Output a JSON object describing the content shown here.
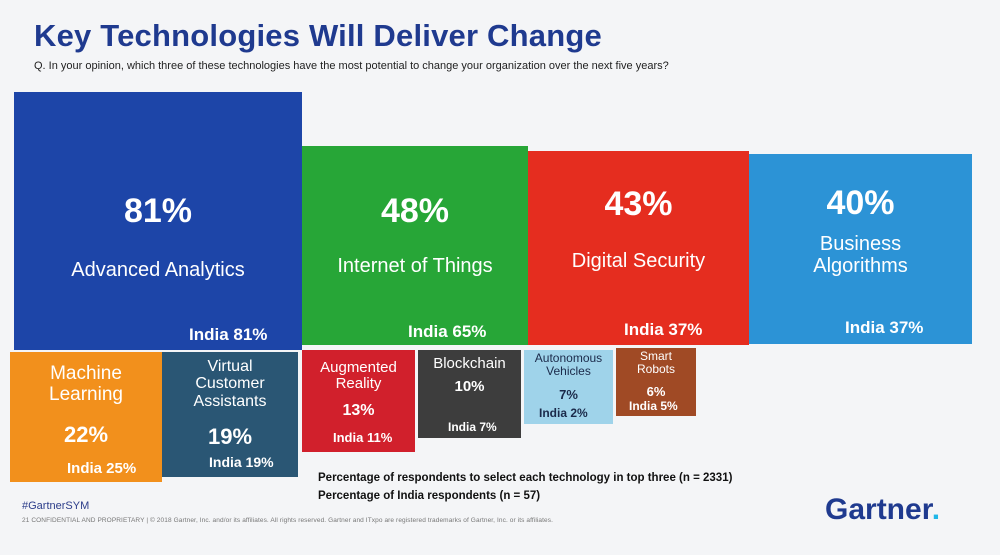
{
  "title": "Key Technologies Will Deliver Change",
  "question": "Q. In your opinion, which three of these technologies have the most potential to change your organization over the next five years?",
  "chart_data": {
    "type": "treemap",
    "series": [
      {
        "name": "Percentage of respondents to select each technology in top three (n = 2331)"
      },
      {
        "name": "Percentage of India respondents (n = 57)"
      }
    ],
    "items": [
      {
        "id": "advanced-analytics",
        "label": "Advanced Analytics",
        "value": 81,
        "value_label": "81%",
        "india": 81,
        "india_label": "India 81%",
        "color": "#1d45a8"
      },
      {
        "id": "internet-of-things",
        "label": "Internet of Things",
        "value": 48,
        "value_label": "48%",
        "india": 65,
        "india_label": "India 65%",
        "color": "#27a637"
      },
      {
        "id": "digital-security",
        "label": "Digital Security",
        "value": 43,
        "value_label": "43%",
        "india": 37,
        "india_label": "India 37%",
        "color": "#e52d1f"
      },
      {
        "id": "business-algorithms",
        "label": "Business Algorithms",
        "value": 40,
        "value_label": "40%",
        "india": 37,
        "india_label": "India 37%",
        "color": "#2c93d6"
      },
      {
        "id": "machine-learning",
        "label": "Machine Learning",
        "value": 22,
        "value_label": "22%",
        "india": 25,
        "india_label": "India 25%",
        "color": "#f2901c"
      },
      {
        "id": "virtual-customer-assistants",
        "label": "Virtual Customer Assistants",
        "value": 19,
        "value_label": "19%",
        "india": 19,
        "india_label": "India  19%",
        "color": "#2a5674"
      },
      {
        "id": "augmented-reality",
        "label": "Augmented Reality",
        "value": 13,
        "value_label": "13%",
        "india": 11,
        "india_label": "India 11%",
        "color": "#d1202c"
      },
      {
        "id": "blockchain",
        "label": "Blockchain",
        "value": 10,
        "value_label": "10%",
        "india": 7,
        "india_label": "India 7%",
        "color": "#3d3d3d"
      },
      {
        "id": "autonomous-vehicles",
        "label": "Autonomous Vehicles",
        "value": 7,
        "value_label": "7%",
        "india": 2,
        "india_label": "India 2%",
        "color": "#9fd3ea"
      },
      {
        "id": "smart-robots",
        "label": "Smart Robots",
        "value": 6,
        "value_label": "6%",
        "india": 5,
        "india_label": "India 5%",
        "color": "#a04a25"
      }
    ]
  },
  "legend": {
    "line1": "Percentage of respondents to select each technology in top three (n = 2331)",
    "line2": "Percentage of  India respondents (n = 57)"
  },
  "hashtag": "#GartnerSYM",
  "footer": "21   CONFIDENTIAL AND PROPRIETARY  |  © 2018 Gartner, Inc. and/or its affiliates. All rights reserved. Gartner and ITxpo are registered trademarks of Gartner, Inc. or its affiliates.",
  "logo": {
    "text": "Gartner",
    "dot": "."
  }
}
